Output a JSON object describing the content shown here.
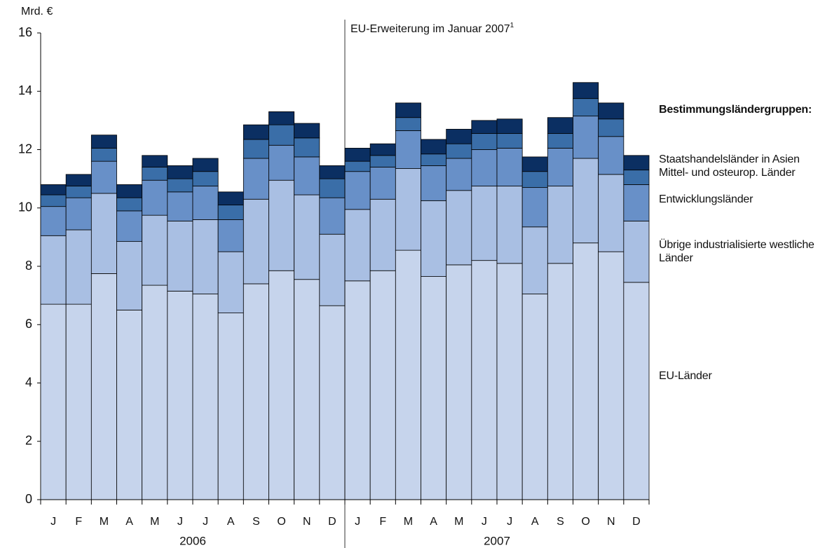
{
  "chart_data": {
    "type": "stacked_bar",
    "y_unit": "Mrd. €",
    "annotation": "EU-Erweiterung im Januar 2007",
    "annotation_note": "1",
    "legend_title": "Bestimmungsländergruppen:",
    "categories": [
      "J",
      "F",
      "M",
      "A",
      "M",
      "J",
      "J",
      "A",
      "S",
      "O",
      "N",
      "D",
      "J",
      "F",
      "M",
      "A",
      "M",
      "J",
      "J",
      "A",
      "S",
      "O",
      "N",
      "D"
    ],
    "years": [
      "2006",
      "2007"
    ],
    "ylim": [
      0,
      16
    ],
    "yticks": [
      0,
      2,
      4,
      6,
      8,
      10,
      12,
      14,
      16
    ],
    "series": [
      {
        "name": "EU-Länder",
        "color": "#c6d4ec",
        "values": [
          6.7,
          6.7,
          7.75,
          6.5,
          7.35,
          7.15,
          7.05,
          6.4,
          7.4,
          7.85,
          7.55,
          6.65,
          7.5,
          7.85,
          8.55,
          7.65,
          8.05,
          8.2,
          8.1,
          7.05,
          8.1,
          8.8,
          8.5,
          7.45
        ]
      },
      {
        "name": "Übrige industrialisierte westliche Länder",
        "color": "#a9bfe3",
        "values": [
          2.35,
          2.55,
          2.75,
          2.35,
          2.4,
          2.4,
          2.55,
          2.1,
          2.9,
          3.1,
          2.9,
          2.45,
          2.45,
          2.45,
          2.8,
          2.6,
          2.55,
          2.55,
          2.65,
          2.3,
          2.65,
          2.9,
          2.65,
          2.1
        ]
      },
      {
        "name": "Entwicklungsländer",
        "color": "#6890c8",
        "values": [
          1.0,
          1.1,
          1.1,
          1.05,
          1.2,
          1.0,
          1.15,
          1.1,
          1.4,
          1.2,
          1.3,
          1.25,
          1.3,
          1.1,
          1.3,
          1.2,
          1.1,
          1.25,
          1.3,
          1.35,
          1.3,
          1.45,
          1.3,
          1.25
        ]
      },
      {
        "name": "Mittel- und osteurop. Länder",
        "color": "#3a6ea8",
        "values": [
          0.4,
          0.4,
          0.45,
          0.45,
          0.45,
          0.45,
          0.5,
          0.5,
          0.65,
          0.7,
          0.65,
          0.65,
          0.35,
          0.4,
          0.45,
          0.4,
          0.5,
          0.55,
          0.5,
          0.55,
          0.5,
          0.6,
          0.6,
          0.5
        ]
      },
      {
        "name": "Staatshandelsländer in Asien",
        "color": "#0b2f62",
        "values": [
          0.35,
          0.4,
          0.45,
          0.45,
          0.4,
          0.45,
          0.45,
          0.45,
          0.5,
          0.45,
          0.5,
          0.45,
          0.45,
          0.4,
          0.5,
          0.5,
          0.5,
          0.45,
          0.5,
          0.5,
          0.55,
          0.55,
          0.55,
          0.5
        ]
      }
    ]
  }
}
